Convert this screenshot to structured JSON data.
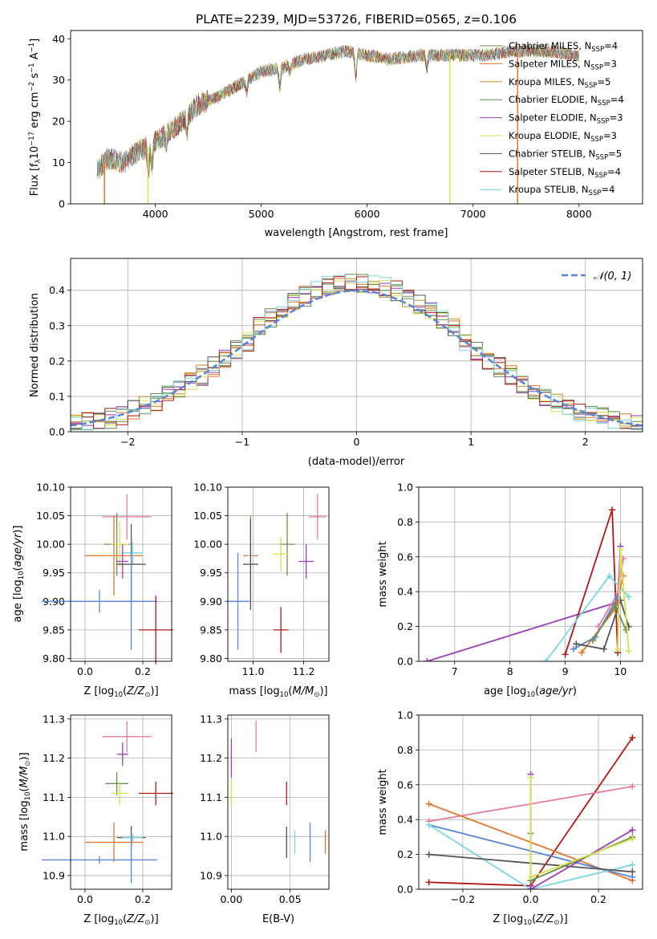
{
  "figure_title": "PLATE=2239, MJD=53726, FIBERID=0565, z=0.106",
  "colors": {
    "chabrier_miles": "#6b8f4e",
    "salpeter_miles": "#e8732a",
    "kroupa_miles": "#c89020",
    "chabrier_elodie": "#5a8a4a",
    "salpeter_elodie": "#9b3fb5",
    "kroupa_elodie": "#d8e050",
    "chabrier_stelib": "#555555",
    "salpeter_stelib": "#b01818",
    "kroupa_stelib": "#78d8e0",
    "blue": "#5b85d8",
    "pink": "#e87aa8",
    "grid": "#b0b0b0"
  },
  "chart_data": [
    {
      "id": "spectrum",
      "type": "line",
      "xlabel": "wavelength [Angstrom, rest frame]",
      "ylabel": "Flux [f",
      "xlim": [
        3200,
        8600
      ],
      "ylim": [
        0,
        42
      ],
      "xticks": [
        4000,
        5000,
        6000,
        7000,
        8000
      ],
      "yticks": [
        0,
        10,
        20,
        30,
        40
      ],
      "legend_position": "right",
      "series": [
        {
          "name": "Chabrier MILES, N",
          "nssp": "4",
          "color": "#6b8f4e"
        },
        {
          "name": "Salpeter MILES, N",
          "nssp": "3",
          "color": "#e8732a"
        },
        {
          "name": "Kroupa MILES, N",
          "nssp": "5",
          "color": "#c89020"
        },
        {
          "name": "Chabrier ELODIE, N",
          "nssp": "4",
          "color": "#5a8a4a"
        },
        {
          "name": "Salpeter ELODIE, N",
          "nssp": "3",
          "color": "#9b3fb5"
        },
        {
          "name": "Kroupa ELODIE, N",
          "nssp": "3",
          "color": "#d8e050"
        },
        {
          "name": "Chabrier STELIB, N",
          "nssp": "5",
          "color": "#555555"
        },
        {
          "name": "Salpeter STELIB, N",
          "nssp": "4",
          "color": "#b01818"
        },
        {
          "name": "Kroupa STELIB, N",
          "nssp": "4",
          "color": "#78d8e0"
        }
      ],
      "continuum": [
        [
          3450,
          8
        ],
        [
          3550,
          11
        ],
        [
          3700,
          10
        ],
        [
          3850,
          13
        ],
        [
          3950,
          14
        ],
        [
          4100,
          17
        ],
        [
          4250,
          20
        ],
        [
          4400,
          24
        ],
        [
          4600,
          26
        ],
        [
          4800,
          29
        ],
        [
          5000,
          32
        ],
        [
          5200,
          33
        ],
        [
          5400,
          35
        ],
        [
          5600,
          36
        ],
        [
          5800,
          37
        ],
        [
          6000,
          36
        ],
        [
          6200,
          35
        ],
        [
          6500,
          36
        ],
        [
          6800,
          36
        ],
        [
          7100,
          36
        ],
        [
          7400,
          37
        ],
        [
          7700,
          37
        ],
        [
          8000,
          36
        ]
      ],
      "dropouts": [
        {
          "x": 3520,
          "color": "#e8732a"
        },
        {
          "x": 3930,
          "color": "#d8e050"
        },
        {
          "x": 6780,
          "color": "#d8e050"
        },
        {
          "x": 7420,
          "color": "#e8732a"
        }
      ]
    },
    {
      "id": "residuals",
      "type": "histogram",
      "xlabel": "(data-model)/error",
      "ylabel": "Normed distribution",
      "xlim": [
        -2.5,
        2.5
      ],
      "ylim": [
        0,
        0.49
      ],
      "xticks": [
        -2,
        -1,
        0,
        1,
        2
      ],
      "yticks": [
        0.0,
        0.1,
        0.2,
        0.3,
        0.4
      ],
      "legend": "𝒩(0, 1)",
      "bins": 50,
      "gaussian": {
        "mean": 0,
        "sigma": 1
      }
    },
    {
      "id": "age-vs-z",
      "type": "errorbar",
      "xlabel": "Z [log",
      "ylabel": "age  [log",
      "xlim": [
        -0.05,
        0.3
      ],
      "ylim": [
        9.795,
        10.1
      ],
      "xticks": [
        0.0,
        0.2
      ],
      "yticks": [
        9.8,
        9.85,
        9.9,
        9.95,
        10.0,
        10.05,
        10.1
      ],
      "points": [
        {
          "x": 0.145,
          "y": 10.048,
          "xerr": 0.085,
          "yerr": 0.04,
          "color": "#e87aa8"
        },
        {
          "x": 0.11,
          "y": 10.0,
          "xerr": 0.045,
          "yerr": 0.055,
          "color": "#6b8f4e"
        },
        {
          "x": 0.12,
          "y": 10.0,
          "xerr": 0.03,
          "yerr": 0.04,
          "color": "#d8e050"
        },
        {
          "x": 0.1,
          "y": 9.98,
          "xerr": 0.1,
          "yerr": 0.07,
          "color": "#e8732a"
        },
        {
          "x": 0.165,
          "y": 9.985,
          "xerr": 0.035,
          "yerr": 0.02,
          "color": "#78d8e0"
        },
        {
          "x": 0.13,
          "y": 9.97,
          "xerr": 0.02,
          "yerr": 0.03,
          "color": "#9b3fb5"
        },
        {
          "x": 0.16,
          "y": 9.965,
          "xerr": 0.05,
          "yerr": 0.07,
          "color": "#555555"
        },
        {
          "x": 0.05,
          "y": 9.9,
          "xerr": 0.2,
          "yerr": 0.02,
          "color": "#5b85d8"
        },
        {
          "x": 0.16,
          "y": 9.9,
          "xerr": 0.02,
          "yerr": 0.085,
          "color": "#5b85d8"
        },
        {
          "x": 0.245,
          "y": 9.85,
          "xerr": 0.06,
          "yerr": 0.06,
          "color": "#b01818"
        }
      ]
    },
    {
      "id": "age-vs-mass",
      "type": "errorbar",
      "xlabel": "mass [log",
      "ylabel": "",
      "xlim": [
        10.9,
        11.3
      ],
      "ylim": [
        9.795,
        10.1
      ],
      "xticks": [
        11.0,
        11.2
      ],
      "yticks": [
        9.8,
        9.85,
        9.9,
        9.95,
        10.0,
        10.05,
        10.1
      ],
      "points": [
        {
          "x": 11.255,
          "y": 10.048,
          "xerr": 0.035,
          "yerr": 0.04,
          "color": "#e87aa8"
        },
        {
          "x": 11.135,
          "y": 10.0,
          "xerr": 0.03,
          "yerr": 0.055,
          "color": "#6b8f4e"
        },
        {
          "x": 11.11,
          "y": 9.983,
          "xerr": 0.03,
          "yerr": 0.03,
          "color": "#d8e050"
        },
        {
          "x": 10.99,
          "y": 9.98,
          "xerr": 0.03,
          "yerr": 0.07,
          "color": "#e8732a"
        },
        {
          "x": 10.99,
          "y": 9.98,
          "xerr": 0.01,
          "yerr": 0.02,
          "color": "#78d8e0"
        },
        {
          "x": 11.21,
          "y": 9.97,
          "xerr": 0.03,
          "yerr": 0.03,
          "color": "#9b3fb5"
        },
        {
          "x": 10.99,
          "y": 9.965,
          "xerr": 0.03,
          "yerr": 0.08,
          "color": "#555555"
        },
        {
          "x": 10.94,
          "y": 9.9,
          "xerr": 0.05,
          "yerr": 0.085,
          "color": "#5b85d8"
        },
        {
          "x": 11.11,
          "y": 9.85,
          "xerr": 0.03,
          "yerr": 0.04,
          "color": "#b01818"
        }
      ]
    },
    {
      "id": "mass-weight-vs-age",
      "type": "line",
      "xlabel": "age  [log",
      "ylabel": "mass weight",
      "xlim": [
        6.35,
        10.4
      ],
      "ylim": [
        0,
        1.0
      ],
      "xticks": [
        7,
        8,
        9,
        10
      ],
      "yticks": [
        0.0,
        0.2,
        0.4,
        0.6,
        0.8,
        1.0
      ],
      "series": [
        {
          "color": "#9b3fb5",
          "points": [
            [
              6.5,
              0.0
            ],
            [
              9.95,
              0.34
            ],
            [
              10.0,
              0.66
            ]
          ]
        },
        {
          "color": "#b01818",
          "points": [
            [
              9.0,
              0.04
            ],
            [
              9.85,
              0.87
            ],
            [
              9.95,
              0.05
            ]
          ]
        },
        {
          "color": "#78d8e0",
          "points": [
            [
              8.65,
              0.0
            ],
            [
              9.8,
              0.49
            ],
            [
              10.15,
              0.37
            ]
          ]
        },
        {
          "color": "#e8732a",
          "points": [
            [
              9.3,
              0.05
            ],
            [
              9.9,
              0.3
            ],
            [
              10.05,
              0.49
            ]
          ]
        },
        {
          "color": "#e87aa8",
          "points": [
            [
              9.6,
              0.2
            ],
            [
              9.95,
              0.39
            ],
            [
              10.05,
              0.59
            ]
          ]
        },
        {
          "color": "#5b85d8",
          "points": [
            [
              9.15,
              0.07
            ],
            [
              9.55,
              0.14
            ],
            [
              9.95,
              0.37
            ]
          ]
        },
        {
          "color": "#555555",
          "points": [
            [
              9.2,
              0.1
            ],
            [
              9.7,
              0.07
            ],
            [
              10.0,
              0.35
            ],
            [
              10.15,
              0.2
            ]
          ]
        },
        {
          "color": "#6b8f4e",
          "points": [
            [
              9.5,
              0.12
            ],
            [
              9.9,
              0.32
            ],
            [
              10.1,
              0.18
            ]
          ]
        },
        {
          "color": "#d8e050",
          "points": [
            [
              9.95,
              0.07
            ],
            [
              10.0,
              0.64
            ],
            [
              10.15,
              0.06
            ]
          ]
        }
      ]
    },
    {
      "id": "mass-vs-z",
      "type": "errorbar",
      "xlabel": "Z [log",
      "ylabel": "mass [log",
      "xlim": [
        -0.05,
        0.3
      ],
      "ylim": [
        10.865,
        11.31
      ],
      "xticks": [
        0.0,
        0.2
      ],
      "yticks": [
        10.9,
        11.0,
        11.1,
        11.2,
        11.3
      ],
      "points": [
        {
          "x": 0.145,
          "y": 11.255,
          "xerr": 0.085,
          "yerr": 0.04,
          "color": "#e87aa8"
        },
        {
          "x": 0.13,
          "y": 11.21,
          "xerr": 0.02,
          "yerr": 0.03,
          "color": "#9b3fb5"
        },
        {
          "x": 0.11,
          "y": 11.135,
          "xerr": 0.04,
          "yerr": 0.03,
          "color": "#6b8f4e"
        },
        {
          "x": 0.12,
          "y": 11.11,
          "xerr": 0.03,
          "yerr": 0.03,
          "color": "#d8e050"
        },
        {
          "x": 0.245,
          "y": 11.11,
          "xerr": 0.06,
          "yerr": 0.03,
          "color": "#b01818"
        },
        {
          "x": 0.16,
          "y": 10.997,
          "xerr": 0.05,
          "yerr": 0.03,
          "color": "#555555"
        },
        {
          "x": 0.165,
          "y": 10.997,
          "xerr": 0.035,
          "yerr": 0.01,
          "color": "#78d8e0"
        },
        {
          "x": 0.1,
          "y": 10.985,
          "xerr": 0.1,
          "yerr": 0.05,
          "color": "#e8732a"
        },
        {
          "x": 0.05,
          "y": 10.94,
          "xerr": 0.2,
          "yerr": 0.01,
          "color": "#5b85d8"
        },
        {
          "x": 0.16,
          "y": 10.94,
          "xerr": 0.005,
          "yerr": 0.06,
          "color": "#5b85d8"
        }
      ]
    },
    {
      "id": "mass-vs-ebv",
      "type": "errorbar",
      "xlabel": "E(B-V)",
      "ylabel": "",
      "xlim": [
        -0.003,
        0.083
      ],
      "ylim": [
        10.865,
        11.31
      ],
      "xticks": [
        0.0,
        0.05
      ],
      "yticks": [
        10.9,
        11.0,
        11.1,
        11.2,
        11.3
      ],
      "points": [
        {
          "x": 0.0,
          "y": 11.2,
          "xerr": 0,
          "yerr": 0.05,
          "color": "#9b3fb5"
        },
        {
          "x": 0.0,
          "y": 11.11,
          "xerr": 0,
          "yerr": 0.035,
          "color": "#d8e050"
        },
        {
          "x": 0.021,
          "y": 11.255,
          "xerr": 0,
          "yerr": 0.04,
          "color": "#e87aa8"
        },
        {
          "x": 0.047,
          "y": 11.11,
          "xerr": 0,
          "yerr": 0.03,
          "color": "#b01818"
        },
        {
          "x": 0.047,
          "y": 10.985,
          "xerr": 0,
          "yerr": 0.04,
          "color": "#555555"
        },
        {
          "x": 0.054,
          "y": 10.985,
          "xerr": 0,
          "yerr": 0.03,
          "color": "#78d8e0"
        },
        {
          "x": 0.067,
          "y": 10.985,
          "xerr": 0,
          "yerr": 0.05,
          "color": "#5b85d8"
        },
        {
          "x": 0.08,
          "y": 10.985,
          "xerr": 0,
          "yerr": 0.03,
          "color": "#e8732a"
        }
      ]
    },
    {
      "id": "mass-weight-vs-z",
      "type": "line",
      "xlabel": "Z [log",
      "ylabel": "mass weight",
      "xlim": [
        -0.33,
        0.33
      ],
      "ylim": [
        0,
        1.0
      ],
      "xticks": [
        -0.2,
        0.0,
        0.2
      ],
      "yticks": [
        0.0,
        0.2,
        0.4,
        0.6,
        0.8,
        1.0
      ],
      "series": [
        {
          "color": "#b01818",
          "points": [
            [
              -0.3,
              0.04
            ],
            [
              0.0,
              0.02
            ],
            [
              0.3,
              0.87
            ]
          ]
        },
        {
          "color": "#e87aa8",
          "points": [
            [
              -0.3,
              0.39
            ],
            [
              0.3,
              0.59
            ]
          ]
        },
        {
          "color": "#e8732a",
          "points": [
            [
              -0.3,
              0.49
            ],
            [
              0.3,
              0.05
            ]
          ]
        },
        {
          "color": "#5b85d8",
          "points": [
            [
              -0.3,
              0.37
            ],
            [
              0.3,
              0.07
            ]
          ]
        },
        {
          "color": "#78d8e0",
          "points": [
            [
              -0.3,
              0.37
            ],
            [
              0.0,
              0.0
            ],
            [
              0.3,
              0.14
            ]
          ]
        },
        {
          "color": "#555555",
          "points": [
            [
              -0.3,
              0.2
            ],
            [
              0.3,
              0.1
            ]
          ]
        },
        {
          "color": "#9b3fb5",
          "points": [
            [
              0.0,
              0.66
            ],
            [
              0.0,
              0.0
            ],
            [
              0.3,
              0.34
            ]
          ]
        },
        {
          "color": "#6b8f4e",
          "points": [
            [
              0.0,
              0.32
            ],
            [
              0.0,
              0.05
            ],
            [
              0.3,
              0.3
            ]
          ]
        },
        {
          "color": "#d8e050",
          "points": [
            [
              0.0,
              0.64
            ],
            [
              0.0,
              0.07
            ],
            [
              0.3,
              0.29
            ]
          ]
        }
      ]
    }
  ]
}
